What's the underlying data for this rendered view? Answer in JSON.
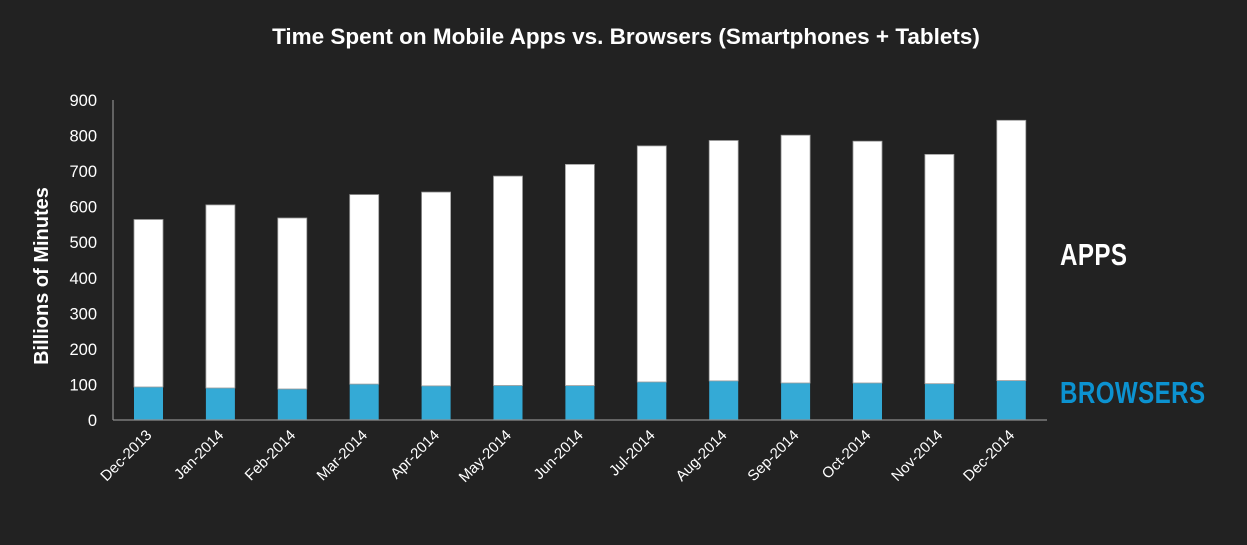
{
  "chart_data": {
    "type": "bar",
    "stacked": true,
    "title": "Time Spent on Mobile Apps vs. Browsers (Smartphones + Tablets)",
    "xlabel": "",
    "ylabel": "Billions of Minutes",
    "ylim": [
      0,
      900
    ],
    "yticks": [
      0,
      100,
      200,
      300,
      400,
      500,
      600,
      700,
      800,
      900
    ],
    "grid": false,
    "legend_position": "right",
    "categories": [
      "Dec-2013",
      "Jan-2014",
      "Feb-2014",
      "Mar-2014",
      "Apr-2014",
      "May-2014",
      "Jun-2014",
      "Jul-2014",
      "Aug-2014",
      "Sep-2014",
      "Oct-2014",
      "Nov-2014",
      "Dec-2014"
    ],
    "series": [
      {
        "name": "BROWSERS",
        "color": "#34aad6",
        "legend_color": "#0c92d0",
        "values": [
          93,
          90,
          87,
          101,
          96,
          97,
          97,
          107,
          110,
          104,
          104,
          102,
          111
        ]
      },
      {
        "name": "APPS",
        "color": "#ffffff",
        "legend_color": "#ffffff",
        "values": [
          471,
          515,
          481,
          533,
          545,
          589,
          622,
          664,
          676,
          697,
          680,
          645,
          732
        ]
      }
    ],
    "totals": [
      564,
      605,
      568,
      634,
      641,
      686,
      719,
      771,
      786,
      801,
      784,
      747,
      843
    ]
  },
  "colors": {
    "background": "#222222",
    "axis": "#8c8c8c",
    "text": "#ffffff"
  }
}
